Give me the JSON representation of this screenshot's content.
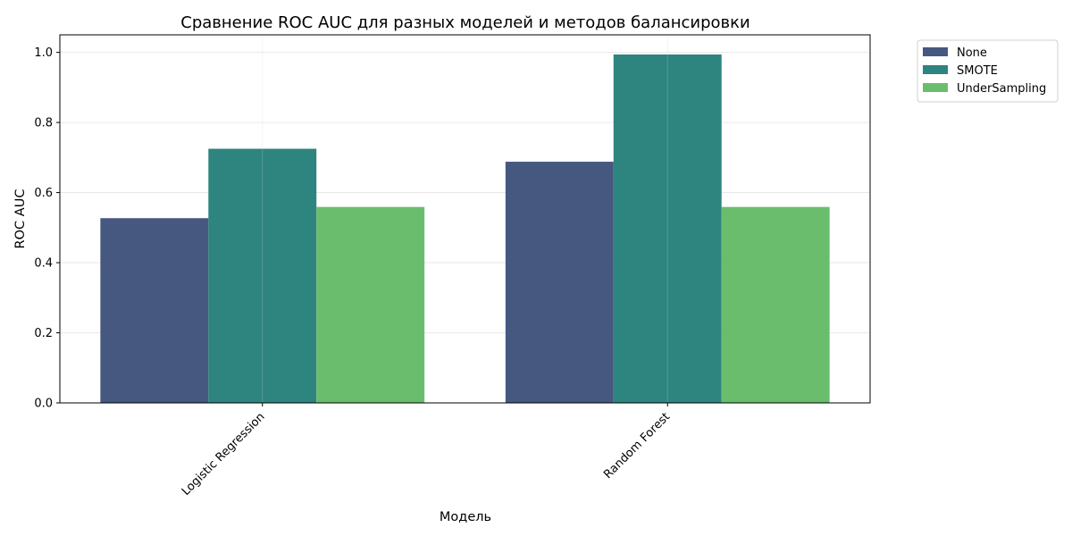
{
  "chart_data": {
    "type": "bar",
    "title": "Сравнение ROC AUC для разных моделей и методов балансировки",
    "xlabel": "Модель",
    "ylabel": "ROC AUC",
    "categories": [
      "Logistic Regression",
      "Random Forest"
    ],
    "series": [
      {
        "name": "None",
        "color": "#46587f",
        "values": [
          0.527,
          0.688
        ]
      },
      {
        "name": "SMOTE",
        "color": "#2e847e",
        "values": [
          0.725,
          0.994
        ]
      },
      {
        "name": "UnderSampling",
        "color": "#6bbd6e",
        "values": [
          0.559,
          0.559
        ]
      }
    ],
    "ylim": [
      0,
      1.05
    ],
    "yticks": [
      0.0,
      0.2,
      0.4,
      0.6,
      0.8,
      1.0
    ],
    "ytick_labels": [
      "0.0",
      "0.2",
      "0.4",
      "0.6",
      "0.8",
      "1.0"
    ],
    "grid": true,
    "legend_position": "outside-top-right",
    "xtick_rotation": 45
  }
}
